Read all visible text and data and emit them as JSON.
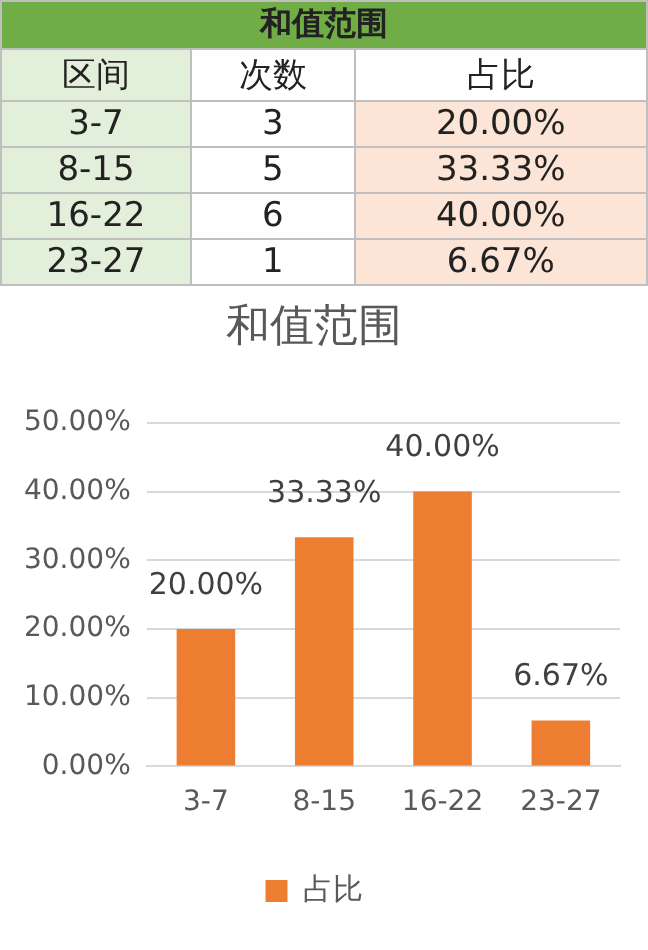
{
  "chart_data": [
    {
      "type": "other",
      "title": "和值范围",
      "xlabel": "区间",
      "categories": [
        "3-7",
        "8-15",
        "16-22",
        "23-27"
      ],
      "data_labels": true,
      "series": [
        {
          "name": "次数",
          "values": [
            3,
            5,
            6,
            1
          ]
        },
        {
          "name": "占比",
          "color": "#fce4d6",
          "values": [
            20,
            33.33,
            40,
            6.67
          ],
          "value_labels": [
            "20.00%",
            "33.33%",
            "40.00%",
            "6.67%"
          ]
        }
      ]
    },
    {
      "type": "bar",
      "title": "和值范围",
      "categories": [
        "3-7",
        "8-15",
        "16-22",
        "23-27"
      ],
      "series": [
        {
          "name": "占比",
          "color": "#ed7d31",
          "values": [
            20,
            33.33,
            40,
            6.67
          ],
          "value_labels": [
            "20.00%",
            "33.33%",
            "40.00%",
            "6.67%"
          ]
        }
      ],
      "ylim": [
        0,
        50
      ],
      "yticks": [
        {
          "value": 0,
          "label": "0.00%"
        },
        {
          "value": 10,
          "label": "10.00%"
        },
        {
          "value": 20,
          "label": "20.00%"
        },
        {
          "value": 30,
          "label": "30.00%"
        },
        {
          "value": 40,
          "label": "40.00%"
        },
        {
          "value": 50,
          "label": "50.00%"
        }
      ],
      "grid": "y",
      "legend": "bottom"
    }
  ]
}
